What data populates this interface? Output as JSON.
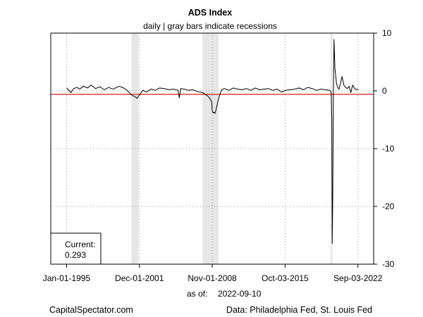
{
  "chart_data": {
    "type": "line",
    "title": "ADS Index",
    "subtitle": "daily | gray bars indicate recessions",
    "x_ticks": [
      "Jan-01-1995",
      "Dec-01-2001",
      "Nov-01-2008",
      "Oct-03-2015",
      "Sep-03-2022"
    ],
    "y_ticks": [
      10,
      0,
      -10,
      -20,
      -30
    ],
    "xlim": [
      "1993-07-01",
      "2024-03-01"
    ],
    "ylim": [
      -30,
      10
    ],
    "grid": true,
    "y_axis_side": "right",
    "reference_line": {
      "value": -0.6,
      "color": "#cc0000"
    },
    "recessions": [
      [
        "2001-03-01",
        "2001-11-01"
      ],
      [
        "2007-12-01",
        "2009-06-01"
      ],
      [
        "2020-02-01",
        "2020-04-01"
      ]
    ],
    "series": [
      {
        "line_color": "#000000",
        "x": [
          "1995-01-01",
          "1995-03-01",
          "1995-06-01",
          "1995-09-01",
          "1996-01-01",
          "1996-04-01",
          "1996-08-01",
          "1997-01-01",
          "1997-05-01",
          "1997-10-01",
          "1998-03-01",
          "1998-08-01",
          "1999-01-01",
          "1999-06-01",
          "2000-01-01",
          "2000-06-01",
          "2000-10-01",
          "2001-01-01",
          "2001-04-01",
          "2001-07-01",
          "2001-09-15",
          "2001-11-01",
          "2002-01-01",
          "2002-04-01",
          "2002-08-01",
          "2003-01-01",
          "2003-06-01",
          "2003-11-01",
          "2004-04-01",
          "2004-10-01",
          "2005-03-01",
          "2005-08-01",
          "2005-09-15",
          "2005-11-01",
          "2006-03-01",
          "2006-08-01",
          "2007-01-01",
          "2007-06-01",
          "2007-12-01",
          "2008-03-01",
          "2008-06-01",
          "2008-09-01",
          "2008-10-15",
          "2008-11-01",
          "2008-12-01",
          "2009-01-01",
          "2009-02-01",
          "2009-03-01",
          "2009-04-01",
          "2009-06-01",
          "2009-08-01",
          "2009-10-01",
          "2010-01-01",
          "2010-06-01",
          "2010-11-01",
          "2011-04-01",
          "2011-09-01",
          "2012-02-01",
          "2012-07-01",
          "2012-12-01",
          "2013-05-01",
          "2013-10-01",
          "2014-03-01",
          "2014-08-01",
          "2015-01-01",
          "2015-06-01",
          "2015-11-01",
          "2016-04-01",
          "2016-09-01",
          "2017-02-01",
          "2017-07-01",
          "2017-12-01",
          "2018-05-01",
          "2018-10-01",
          "2019-03-01",
          "2019-08-01",
          "2020-01-01",
          "2020-02-20",
          "2020-03-10",
          "2020-03-25",
          "2020-04-10",
          "2020-04-25",
          "2020-05-10",
          "2020-05-25",
          "2020-06-10",
          "2020-06-25",
          "2020-07-15",
          "2020-08-15",
          "2020-09-15",
          "2020-10-15",
          "2020-11-15",
          "2021-01-01",
          "2021-03-01",
          "2021-05-01",
          "2021-07-01",
          "2021-09-01",
          "2021-11-01",
          "2022-01-01",
          "2022-03-01",
          "2022-05-01",
          "2022-07-01",
          "2022-09-10"
        ],
        "y": [
          0.5,
          0.2,
          -0.3,
          0.4,
          0.6,
          0.3,
          0.8,
          0.5,
          1.0,
          0.4,
          0.7,
          0.2,
          0.6,
          0.3,
          0.8,
          0.5,
          0.1,
          -0.4,
          -0.8,
          -1.0,
          -1.3,
          -0.9,
          -0.5,
          0.1,
          -0.2,
          0.3,
          0.1,
          0.5,
          0.4,
          0.2,
          0.3,
          0.1,
          -1.2,
          0.4,
          0.3,
          0.1,
          0.2,
          -0.1,
          -0.3,
          -0.6,
          -0.9,
          -1.5,
          -2.0,
          -3.5,
          -3.8,
          -3.7,
          -3.9,
          -3.5,
          -2.8,
          -1.5,
          -0.5,
          0.2,
          0.4,
          0.1,
          0.5,
          0.3,
          0.2,
          0.4,
          0.1,
          0.5,
          0.2,
          0.3,
          0.4,
          0.1,
          0.3,
          -0.2,
          0.1,
          0.2,
          0.3,
          0.5,
          0.2,
          0.6,
          0.4,
          0.1,
          0.3,
          0.2,
          0.1,
          -0.3,
          -5.0,
          -26.4,
          -20.0,
          -8.0,
          2.0,
          8.9,
          6.5,
          4.0,
          3.0,
          1.5,
          0.8,
          0.5,
          0.3,
          1.2,
          2.5,
          1.0,
          0.6,
          0.4,
          0.8,
          -0.3,
          1.0,
          0.5,
          0.2,
          0.3
        ]
      }
    ]
  },
  "current_box": {
    "label": "Current:",
    "value": "0.293"
  },
  "asof": {
    "label": "as of:",
    "date": "2022-09-10"
  },
  "footer": {
    "left": "CapitalSpectator.com",
    "right": "Data: Philadelphia Fed, St. Louis Fed"
  }
}
